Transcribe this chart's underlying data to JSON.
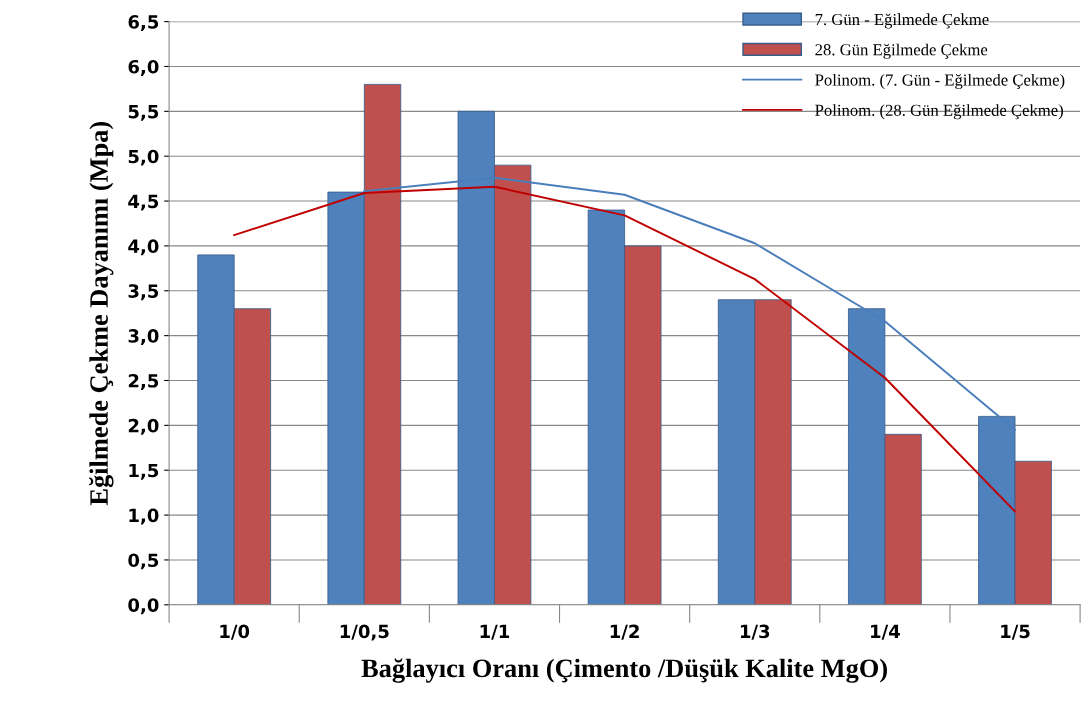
{
  "chart_data": {
    "type": "bar",
    "xlabel": "Bağlayıcı Oranı (Çimento /Düşük Kalite MgO)",
    "ylabel": "Eğilmede Çekme Dayanımı (Mpa)",
    "categories": [
      "1/0",
      "1/0,5",
      "1/1",
      "1/2",
      "1/3",
      "1/4",
      "1/5"
    ],
    "series": [
      {
        "name": "7. Gün - Eğilmede Çekme",
        "color": "#4f81bd",
        "values": [
          3.9,
          4.6,
          5.5,
          4.4,
          3.4,
          3.3,
          2.1
        ]
      },
      {
        "name": "28. Gün Eğilmede Çekme",
        "color": "#c0504d",
        "values": [
          3.3,
          5.8,
          4.9,
          4.0,
          3.4,
          1.9,
          1.6
        ]
      },
      {
        "name": "Polinom. (7. Gün - Eğilmede Çekme)",
        "type": "line",
        "color": "#4a7ebb",
        "values": [
          null,
          4.61,
          4.76,
          4.57,
          4.03,
          3.16,
          1.95
        ]
      },
      {
        "name": "Polinom. (28. Gün Eğilmede Çekme)",
        "type": "line",
        "color": "#c00000",
        "values": [
          4.12,
          4.59,
          4.66,
          4.34,
          3.63,
          2.53,
          1.04
        ]
      }
    ],
    "ylim": [
      0,
      6.5
    ],
    "yticks": [
      {
        "value": 0,
        "label": "0,0"
      },
      {
        "value": 0.5,
        "label": "0,5"
      },
      {
        "value": 1,
        "label": "1,0"
      },
      {
        "value": 1.5,
        "label": "1,5"
      },
      {
        "value": 2,
        "label": "2,0"
      },
      {
        "value": 2.5,
        "label": "2,5"
      },
      {
        "value": 3,
        "label": "3,0"
      },
      {
        "value": 3.5,
        "label": "3,5"
      },
      {
        "value": 4,
        "label": "4,0"
      },
      {
        "value": 4.5,
        "label": "4,5"
      },
      {
        "value": 5,
        "label": "5,0"
      },
      {
        "value": 5.5,
        "label": "5,5"
      },
      {
        "value": 6,
        "label": "6,0"
      },
      {
        "value": 6.5,
        "label": "6,5"
      }
    ],
    "grid": "y",
    "legend": "top right",
    "marker": "none",
    "line_style": "solid"
  }
}
